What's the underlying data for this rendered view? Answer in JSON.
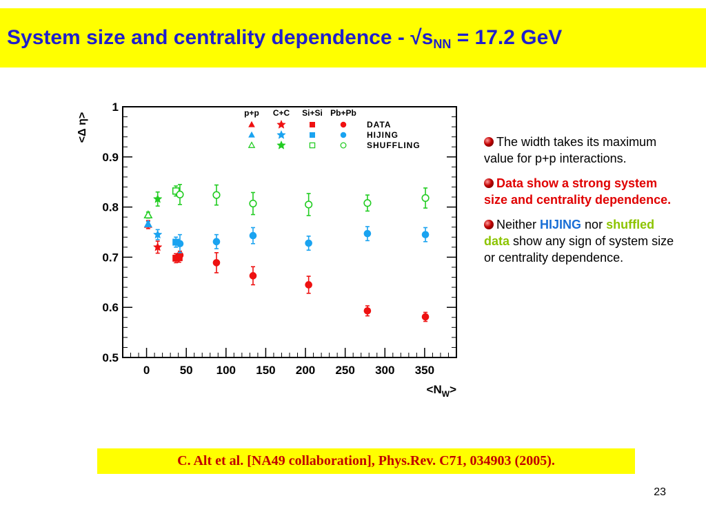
{
  "slide": {
    "title_main": "System size and centrality dependence - √s",
    "title_sub": "NN",
    "title_tail": " = 17.2 GeV",
    "citation": "C. Alt et al. [NA49 collaboration], Phys.Rev. C71, 034903 (2005).",
    "page_number": "23"
  },
  "bullets": {
    "b1": "The width takes its maximum value for p+p interactions.",
    "b2": "Data show a strong system size and centrality dependence.",
    "b3_pre": "Neither ",
    "b3_hijing": "HIJING",
    "b3_mid": " nor ",
    "b3_shuffled": "shuffled data",
    "b3_post": " show any sign of system size or centrality dependence."
  },
  "colors": {
    "title": "#1f1fcc",
    "data": "#ee1111",
    "hijing": "#1aa3f0",
    "shuffling": "#22cc22",
    "citation": "#c00000"
  },
  "chart_data": {
    "type": "scatter",
    "title": "",
    "xlabel_pre": "<N",
    "xlabel_sub": "W",
    "xlabel_post": ">",
    "ylabel": "<Δ η>",
    "xlim": [
      -30,
      390
    ],
    "ylim": [
      0.5,
      1.0
    ],
    "xticks": [
      0,
      50,
      100,
      150,
      200,
      250,
      300,
      350
    ],
    "yticks": [
      0.5,
      0.6,
      0.7,
      0.8,
      0.9,
      1
    ],
    "ytick_labels": [
      "0.5",
      "0.6",
      "0.7",
      "0.8",
      "0.9",
      "1"
    ],
    "legend": {
      "columns": [
        "p+p",
        "C+C",
        "Si+Si",
        "Pb+Pb"
      ],
      "rows": [
        "DATA",
        "HIJING",
        "SHUFFLING"
      ],
      "placement": "top-right"
    },
    "series": [
      {
        "name": "DATA",
        "system": "p+p",
        "marker": "triangle",
        "filled": true,
        "points": [
          {
            "x": 2,
            "y": 0.765,
            "err": 0.008
          }
        ]
      },
      {
        "name": "DATA",
        "system": "C+C",
        "marker": "star",
        "filled": true,
        "points": [
          {
            "x": 14,
            "y": 0.72,
            "err": 0.012
          }
        ]
      },
      {
        "name": "DATA",
        "system": "Si+Si",
        "marker": "square",
        "filled": true,
        "points": [
          {
            "x": 37,
            "y": 0.698,
            "err": 0.009
          },
          {
            "x": 41,
            "y": 0.699,
            "err": 0.009
          }
        ]
      },
      {
        "name": "DATA",
        "system": "Pb+Pb",
        "marker": "circle",
        "filled": true,
        "points": [
          {
            "x": 42,
            "y": 0.704,
            "err": 0.008
          },
          {
            "x": 88,
            "y": 0.689,
            "err": 0.02
          },
          {
            "x": 134,
            "y": 0.663,
            "err": 0.018
          },
          {
            "x": 204,
            "y": 0.645,
            "err": 0.017
          },
          {
            "x": 278,
            "y": 0.593,
            "err": 0.01
          },
          {
            "x": 351,
            "y": 0.581,
            "err": 0.009
          }
        ]
      },
      {
        "name": "HIJING",
        "system": "p+p",
        "marker": "triangle",
        "filled": true,
        "points": [
          {
            "x": 2,
            "y": 0.766,
            "err": 0.005
          }
        ]
      },
      {
        "name": "HIJING",
        "system": "C+C",
        "marker": "star",
        "filled": true,
        "points": [
          {
            "x": 14,
            "y": 0.745,
            "err": 0.01
          }
        ]
      },
      {
        "name": "HIJING",
        "system": "Si+Si",
        "marker": "square",
        "filled": true,
        "points": [
          {
            "x": 37,
            "y": 0.73,
            "err": 0.01
          }
        ]
      },
      {
        "name": "HIJING",
        "system": "Pb+Pb",
        "marker": "circle",
        "filled": true,
        "points": [
          {
            "x": 42,
            "y": 0.727,
            "err": 0.018
          },
          {
            "x": 88,
            "y": 0.731,
            "err": 0.014
          },
          {
            "x": 134,
            "y": 0.743,
            "err": 0.016
          },
          {
            "x": 204,
            "y": 0.728,
            "err": 0.014
          },
          {
            "x": 278,
            "y": 0.747,
            "err": 0.014
          },
          {
            "x": 351,
            "y": 0.745,
            "err": 0.014
          }
        ]
      },
      {
        "name": "SHUFFLING",
        "system": "p+p",
        "marker": "triangle",
        "filled": false,
        "points": [
          {
            "x": 2,
            "y": 0.784,
            "err": 0.006
          }
        ]
      },
      {
        "name": "SHUFFLING",
        "system": "C+C",
        "marker": "star",
        "filled": true,
        "points": [
          {
            "x": 14,
            "y": 0.816,
            "err": 0.014
          }
        ]
      },
      {
        "name": "SHUFFLING",
        "system": "Si+Si",
        "marker": "square",
        "filled": false,
        "points": [
          {
            "x": 37,
            "y": 0.832,
            "err": 0.01
          }
        ]
      },
      {
        "name": "SHUFFLING",
        "system": "Pb+Pb",
        "marker": "circle",
        "filled": false,
        "points": [
          {
            "x": 42,
            "y": 0.825,
            "err": 0.02
          },
          {
            "x": 88,
            "y": 0.824,
            "err": 0.02
          },
          {
            "x": 134,
            "y": 0.807,
            "err": 0.022
          },
          {
            "x": 204,
            "y": 0.805,
            "err": 0.022
          },
          {
            "x": 278,
            "y": 0.808,
            "err": 0.016
          },
          {
            "x": 351,
            "y": 0.818,
            "err": 0.02
          }
        ]
      }
    ]
  }
}
